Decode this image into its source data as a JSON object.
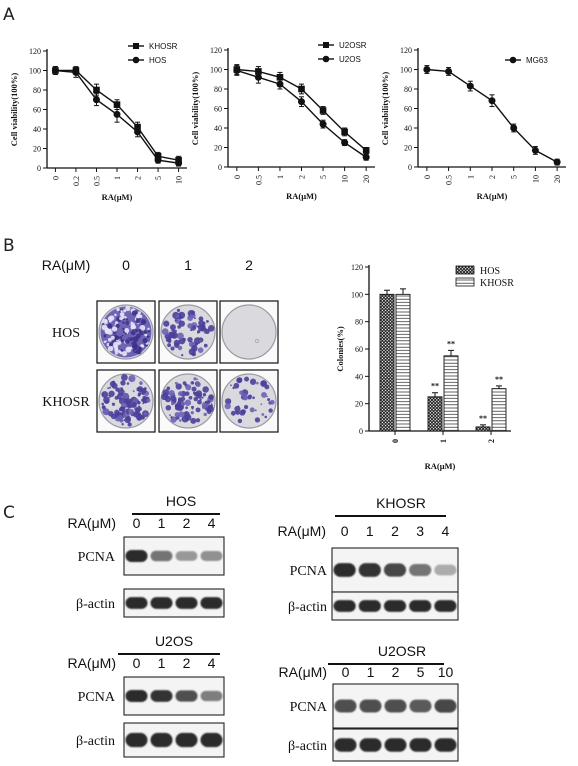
{
  "panels": {
    "A": "A",
    "B": "B",
    "C": "C"
  },
  "colors": {
    "ink": "#111111",
    "crystal_violet": "#4a3f9a",
    "dish_bg": "#d9d9de",
    "blot_bg": "#f4f4f4",
    "band": "#1a1a1a"
  },
  "chart_data": [
    {
      "type": "line",
      "panel": "A",
      "x": [
        "0",
        "0.2",
        "0.5",
        "1",
        "2",
        "5",
        "10"
      ],
      "ylim": [
        0,
        120
      ],
      "yticks": [
        "0",
        "20",
        "40",
        "60",
        "80",
        "100",
        "120"
      ],
      "xlabel": "RA(μM)",
      "ylabel": "Cell viability(100%)",
      "series": [
        {
          "name": "KHOSR",
          "marker": "square",
          "values": [
            100,
            100,
            80,
            65,
            42,
            12,
            8
          ],
          "err": [
            4,
            4,
            6,
            5,
            5,
            4,
            4
          ]
        },
        {
          "name": "HOS",
          "marker": "circle",
          "values": [
            100,
            98,
            70,
            55,
            37,
            8,
            5
          ],
          "err": [
            4,
            5,
            6,
            8,
            5,
            3,
            3
          ]
        }
      ]
    },
    {
      "type": "line",
      "panel": "A",
      "x": [
        "0",
        "0.5",
        "1",
        "2",
        "5",
        "10",
        "20"
      ],
      "ylim": [
        0,
        120
      ],
      "yticks": [
        "0",
        "20",
        "40",
        "60",
        "80",
        "100",
        "120"
      ],
      "xlabel": "RA(μM)",
      "ylabel": "Cell viability(100%)",
      "series": [
        {
          "name": "U2OSR",
          "marker": "square",
          "values": [
            100,
            98,
            92,
            80,
            58,
            36,
            17
          ],
          "err": [
            5,
            5,
            5,
            5,
            4,
            4,
            3
          ]
        },
        {
          "name": "U2OS",
          "marker": "circle",
          "values": [
            99,
            92,
            85,
            67,
            44,
            25,
            10
          ],
          "err": [
            5,
            6,
            5,
            5,
            4,
            3,
            3
          ]
        }
      ]
    },
    {
      "type": "line",
      "panel": "A",
      "x": [
        "0",
        "0.5",
        "1",
        "2",
        "5",
        "10",
        "20"
      ],
      "ylim": [
        0,
        120
      ],
      "yticks": [
        "0",
        "20",
        "40",
        "60",
        "80",
        "100",
        "120"
      ],
      "xlabel": "RA(μM)",
      "ylabel": "Cell viability(100%)",
      "series": [
        {
          "name": "MG63",
          "marker": "circle",
          "values": [
            100,
            98,
            83,
            68,
            40,
            17,
            5
          ],
          "err": [
            4,
            4,
            5,
            6,
            4,
            4,
            3
          ]
        }
      ]
    },
    {
      "type": "bar",
      "panel": "B",
      "categories": [
        "0",
        "1",
        "2"
      ],
      "ylim": [
        0,
        120
      ],
      "yticks": [
        "0",
        "20",
        "40",
        "60",
        "80",
        "100",
        "120"
      ],
      "xlabel": "RA(μM)",
      "ylabel": "Colonies(%)",
      "series": [
        {
          "name": "HOS",
          "values": [
            100,
            25,
            3
          ],
          "err": [
            3,
            3,
            1.5
          ],
          "sig": [
            "",
            "**",
            "**"
          ]
        },
        {
          "name": "KHOSR",
          "values": [
            100,
            55,
            31
          ],
          "err": [
            4,
            4,
            2
          ],
          "sig": [
            "",
            "**",
            "**"
          ]
        }
      ]
    }
  ],
  "colony_assay": {
    "header_label": "RA(μM)",
    "doses": [
      "0",
      "1",
      "2"
    ],
    "rows": [
      {
        "label": "HOS",
        "densities": [
          0.92,
          0.5,
          0.0
        ]
      },
      {
        "label": "KHOSR",
        "densities": [
          0.8,
          0.6,
          0.3
        ]
      }
    ]
  },
  "blots": [
    {
      "title": "HOS",
      "ra_label": "RA(μM)",
      "doses": [
        "0",
        "1",
        "2",
        "4"
      ],
      "rows": [
        {
          "label": "PCNA",
          "intensities": [
            0.95,
            0.55,
            0.35,
            0.4
          ]
        },
        {
          "label": "β-actin",
          "intensities": [
            0.95,
            0.95,
            0.95,
            0.95
          ]
        }
      ]
    },
    {
      "title": "KHOSR",
      "ra_label": "RA(μM)",
      "doses": [
        "0",
        "1",
        "2",
        "3",
        "4"
      ],
      "rows": [
        {
          "label": "PCNA",
          "intensities": [
            0.95,
            0.9,
            0.8,
            0.55,
            0.25
          ]
        },
        {
          "label": "β-actin",
          "intensities": [
            0.95,
            0.95,
            0.95,
            0.95,
            0.95
          ]
        }
      ]
    },
    {
      "title": "U2OS",
      "ra_label": "RA(μM)",
      "doses": [
        "0",
        "1",
        "2",
        "4"
      ],
      "rows": [
        {
          "label": "PCNA",
          "intensities": [
            0.95,
            0.9,
            0.75,
            0.5
          ]
        },
        {
          "label": "β-actin",
          "intensities": [
            0.95,
            0.95,
            0.95,
            0.95
          ]
        }
      ]
    },
    {
      "title": "U2OSR",
      "ra_label": "RA(μM)",
      "doses": [
        "0",
        "1",
        "2",
        "5",
        "10"
      ],
      "rows": [
        {
          "label": "PCNA",
          "intensities": [
            0.75,
            0.75,
            0.75,
            0.7,
            0.8
          ]
        },
        {
          "label": "β-actin",
          "intensities": [
            0.95,
            0.95,
            0.95,
            0.95,
            0.95
          ]
        }
      ]
    }
  ]
}
